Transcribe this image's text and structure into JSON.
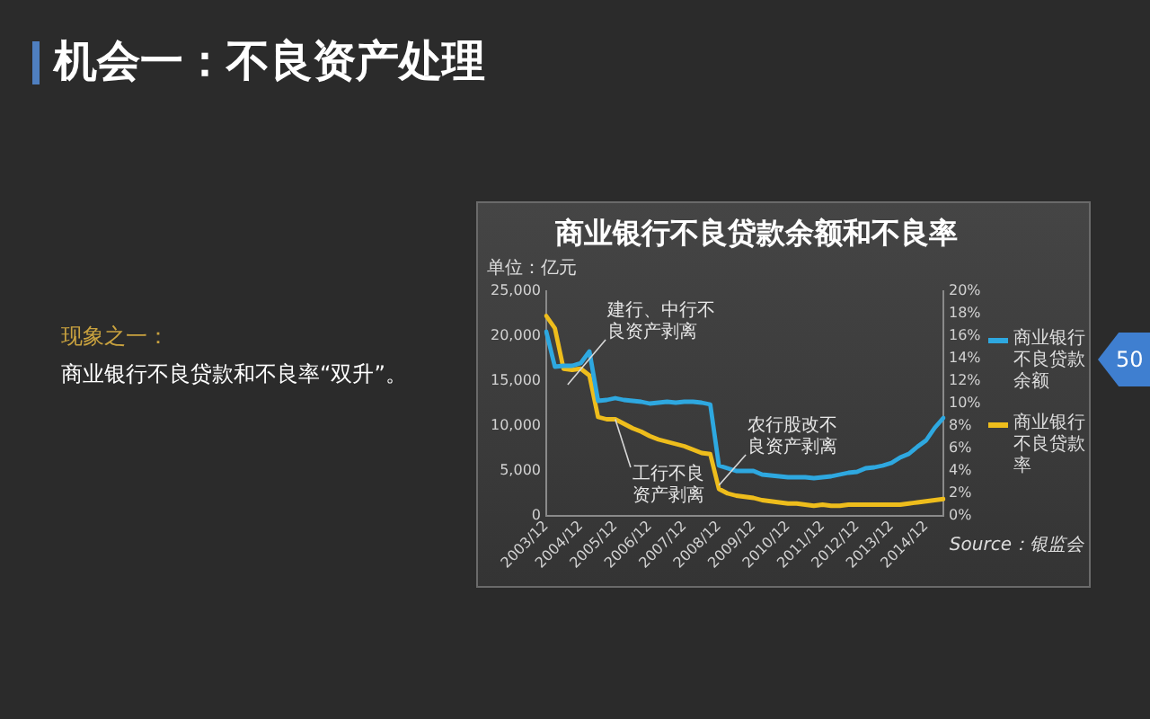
{
  "chart_data": {
    "type": "line",
    "title": "机会一：不良资产处理",
    "subtitle": "商业银行不良贷款余额和不良率",
    "ylabel": "单位：亿元",
    "categories": [
      "2003/12",
      null,
      null,
      null,
      "2004/12",
      null,
      null,
      null,
      "2005/12",
      null,
      null,
      null,
      "2006/12",
      null,
      null,
      null,
      "2007/12",
      null,
      null,
      null,
      "2008/12",
      null,
      null,
      null,
      "2009/12",
      null,
      null,
      null,
      "2010/12",
      null,
      null,
      null,
      "2011/12",
      null,
      null,
      null,
      "2012/12",
      null,
      null,
      null,
      "2013/12",
      null,
      null,
      null,
      "2014/12",
      null,
      null
    ],
    "series": [
      {
        "name": "商业银行不良贷款余额",
        "color": "#2ea8e0",
        "values": [
          20500,
          16600,
          16700,
          16700,
          17000,
          18300,
          12800,
          12900,
          13100,
          12900,
          12800,
          12700,
          12500,
          12600,
          12700,
          12600,
          12700,
          12700,
          12600,
          12400,
          5600,
          5300,
          5000,
          5000,
          5000,
          4600,
          4500,
          4400,
          4300,
          4300,
          4300,
          4200,
          4300,
          4400,
          4600,
          4800,
          4900,
          5300,
          5400,
          5600,
          5900,
          6500,
          6900,
          7700,
          8400,
          9800,
          10900
        ]
      },
      {
        "name": "商业银行不良贷款率",
        "color": "#eebd1c",
        "axis": "y2",
        "values": [
          17.8,
          16.7,
          13.1,
          13.0,
          13.1,
          12.5,
          8.8,
          8.6,
          8.6,
          8.2,
          7.8,
          7.5,
          7.1,
          6.8,
          6.6,
          6.4,
          6.2,
          5.9,
          5.6,
          5.5,
          2.4,
          2.0,
          1.8,
          1.7,
          1.6,
          1.4,
          1.3,
          1.2,
          1.1,
          1.1,
          1.0,
          0.9,
          1.0,
          0.9,
          0.9,
          1.0,
          1.0,
          1.0,
          1.0,
          1.0,
          1.0,
          1.0,
          1.1,
          1.2,
          1.3,
          1.4,
          1.5
        ]
      }
    ],
    "ylim": [
      0,
      25000
    ],
    "yticks": [
      0,
      {
        "value": 5000,
        "label": "5,000"
      },
      {
        "value": 10000,
        "label": "10,000"
      },
      {
        "value": 15000,
        "label": "15,000"
      },
      {
        "value": 20000,
        "label": "20,000"
      },
      {
        "value": 25000,
        "label": "25,000"
      }
    ],
    "y2lim": [
      0,
      20
    ],
    "y2ticks": [
      {
        "value": 0,
        "label": "0%"
      },
      {
        "value": 2,
        "label": "2%"
      },
      {
        "value": 4,
        "label": "4%"
      },
      {
        "value": 6,
        "label": "6%"
      },
      {
        "value": 8,
        "label": "8%"
      },
      {
        "value": 10,
        "label": "10%"
      },
      {
        "value": 12,
        "label": "12%"
      },
      {
        "value": 14,
        "label": "14%"
      },
      {
        "value": 16,
        "label": "16%"
      },
      {
        "value": 18,
        "label": "18%"
      },
      {
        "value": 20,
        "label": "20%"
      }
    ],
    "grid": false,
    "legend": "right",
    "annotations": [
      "现象之一：",
      "商业银行不良贷款和不良率“双升”。",
      "建行、中行不良资产剥离",
      {
        "text": "工行不良资产剥离",
        "x": "2005/12",
        "y": 10750
      },
      {
        "text": "农行股改不良资产剥离",
        "x": "2008/12",
        "y": 3400
      },
      "Source：银监会",
      "50"
    ]
  }
}
